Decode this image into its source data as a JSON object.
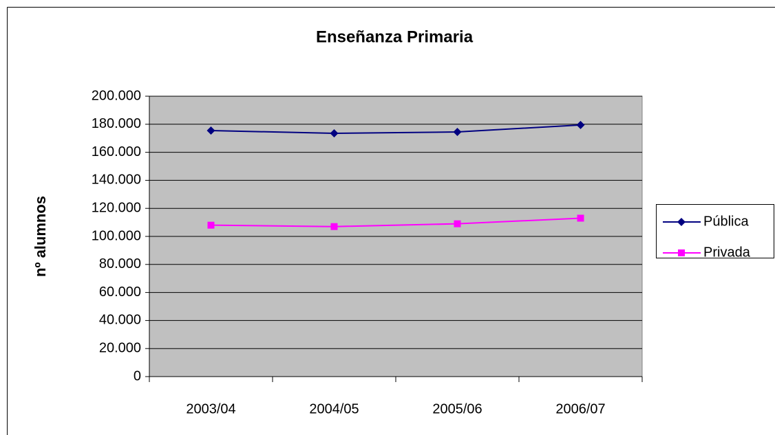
{
  "chart_data": {
    "type": "line",
    "title": "Enseñanza Primaria",
    "y_label": "nº alumnos",
    "categories": [
      "2003/04",
      "2004/05",
      "2005/06",
      "2006/07"
    ],
    "series": [
      {
        "name": "Pública",
        "color": "#000080",
        "marker": "diamond",
        "values": [
          175500,
          173500,
          174500,
          179500
        ]
      },
      {
        "name": "Privada",
        "color": "#ff00ff",
        "marker": "square",
        "values": [
          108000,
          107000,
          109000,
          113000
        ]
      }
    ],
    "ylim": [
      0,
      200000
    ],
    "yticks": [
      0,
      {
        "value": 20000,
        "label": "20.000"
      },
      {
        "value": 40000,
        "label": "40.000"
      },
      {
        "value": 60000,
        "label": "60.000"
      },
      {
        "value": 80000,
        "label": "80.000"
      },
      {
        "value": 100000,
        "label": "100.000"
      },
      {
        "value": 120000,
        "label": "120.000"
      },
      {
        "value": 140000,
        "label": "140.000"
      },
      {
        "value": 160000,
        "label": "160.000"
      },
      {
        "value": 180000,
        "label": "180.000"
      },
      {
        "value": 200000,
        "label": "200.000"
      }
    ],
    "grid": true,
    "plot_background": "#c0c0c0",
    "legend": "right"
  }
}
